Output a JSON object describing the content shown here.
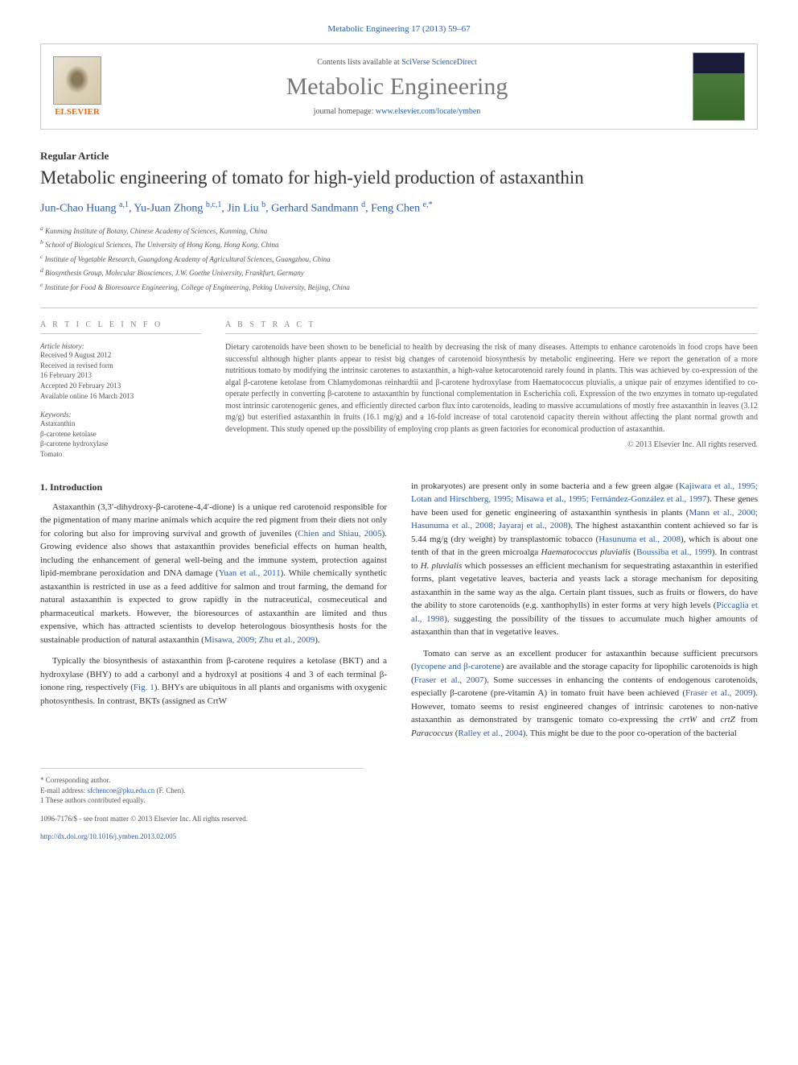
{
  "header": {
    "top_link": "Metabolic Engineering 17 (2013) 59–67",
    "contents_prefix": "Contents lists available at ",
    "contents_link": "SciVerse ScienceDirect",
    "journal_name": "Metabolic Engineering",
    "homepage_prefix": "journal homepage: ",
    "homepage_link": "www.elsevier.com/locate/ymben",
    "publisher": "ELSEVIER"
  },
  "article": {
    "type": "Regular Article",
    "title": "Metabolic engineering of tomato for high-yield production of astaxanthin",
    "authors_html": "Jun-Chao Huang <sup>a,1</sup>, Yu-Juan Zhong <sup>b,c,1</sup>, Jin Liu <sup>b</sup>, Gerhard Sandmann <sup>d</sup>, Feng Chen <sup>e,*</sup>",
    "affiliations": [
      "a Kunming Institute of Botany, Chinese Academy of Sciences, Kunming, China",
      "b School of Biological Sciences, The University of Hong Kong, Hong Kong, China",
      "c Institute of Vegetable Research, Guangdong Academy of Agricultural Sciences, Guangzhou, China",
      "d Biosynthesis Group, Molecular Biosciences, J.W. Goethe University, Frankfurt, Germany",
      "e Institute for Food & Bioresource Engineering, College of Engineering, Peking University, Beijing, China"
    ]
  },
  "info": {
    "heading": "A R T I C L E   I N F O",
    "history_label": "Article history:",
    "history": [
      "Received 9 August 2012",
      "Received in revised form",
      "16 February 2013",
      "Accepted 20 February 2013",
      "Available online 16 March 2013"
    ],
    "keywords_label": "Keywords:",
    "keywords": [
      "Astaxanthin",
      "β-carotene ketolase",
      "β-carotene hydroxylase",
      "Tomato"
    ]
  },
  "abstract": {
    "heading": "A B S T R A C T",
    "text": "Dietary carotenoids have been shown to be beneficial to health by decreasing the risk of many diseases. Attempts to enhance carotenoids in food crops have been successful although higher plants appear to resist big changes of carotenoid biosynthesis by metabolic engineering. Here we report the generation of a more nutritious tomato by modifying the intrinsic carotenes to astaxanthin, a high-value ketocarotenoid rarely found in plants. This was achieved by co-expression of the algal β-carotene ketolase from Chlamydomonas reinhardtii and β-carotene hydroxylase from Haematococcus pluvialis, a unique pair of enzymes identified to co-operate perfectly in converting β-carotene to astaxanthin by functional complementation in Escherichia coli. Expression of the two enzymes in tomato up-regulated most intrinsic carotenogenic genes, and efficiently directed carbon flux into carotenoids, leading to massive accumulations of mostly free astaxanthin in leaves (3.12 mg/g) but esterified astaxanthin in fruits (16.1 mg/g) and a 16-fold increase of total carotenoid capacity therein without affecting the plant normal growth and development. This study opened up the possibility of employing crop plants as green factories for economical production of astaxanthin.",
    "copyright": "© 2013 Elsevier Inc. All rights reserved."
  },
  "body": {
    "section_heading": "1. Introduction",
    "col1_p1": "Astaxanthin (3,3′-dihydroxy-β-carotene-4,4′-dione) is a unique red carotenoid responsible for the pigmentation of many marine animals which acquire the red pigment from their diets not only for coloring but also for improving survival and growth of juveniles (Chien and Shiau, 2005). Growing evidence also shows that astaxanthin provides beneficial effects on human health, including the enhancement of general well-being and the immune system, protection against lipid-membrane peroxidation and DNA damage (Yuan et al., 2011). While chemically synthetic astaxanthin is restricted in use as a feed additive for salmon and trout farming, the demand for natural astaxanthin is expected to grow rapidly in the nutraceutical, cosmeceutical and pharmaceutical markets. However, the bioresources of astaxanthin are limited and thus expensive, which has attracted scientists to develop heterologous biosynthesis hosts for the sustainable production of natural astaxanthin (Misawa, 2009; Zhu et al., 2009).",
    "col1_p2": "Typically the biosynthesis of astaxanthin from β-carotene requires a ketolase (BKT) and a hydroxylase (BHY) to add a carbonyl and a hydroxyl at positions 4 and 3 of each terminal β-ionone ring, respectively (Fig. 1). BHYs are ubiquitous in all plants and organisms with oxygenic photosynthesis. In contrast, BKTs (assigned as CrtW",
    "col2_p1": "in prokaryotes) are present only in some bacteria and a few green algae (Kajiwara et al., 1995; Lotan and Hirschberg, 1995; Misawa et al., 1995; Fernández-González et al., 1997). These genes have been used for genetic engineering of astaxanthin synthesis in plants (Mann et al., 2000; Hasunuma et al., 2008; Jayaraj et al., 2008). The highest astaxanthin content achieved so far is 5.44 mg/g (dry weight) by transplastomic tobacco (Hasunuma et al., 2008), which is about one tenth of that in the green microalga Haematococcus pluvialis (Boussiba et al., 1999). In contrast to H. pluvialis which possesses an efficient mechanism for sequestrating astaxanthin in esterified forms, plant vegetative leaves, bacteria and yeasts lack a storage mechanism for depositing astaxanthin in the same way as the alga. Certain plant tissues, such as fruits or flowers, do have the ability to store carotenoids (e.g. xanthophylls) in ester forms at very high levels (Piccaglia et al., 1998), suggesting the possibility of the tissues to accumulate much higher amounts of astaxanthin than that in vegetative leaves.",
    "col2_p2": "Tomato can serve as an excellent producer for astaxanthin because sufficient precursors (lycopene and β-carotene) are available and the storage capacity for lipophilic carotenoids is high (Fraser et al., 2007). Some successes in enhancing the contents of endogenous carotenoids, especially β-carotene (pre-vitamin A) in tomato fruit have been achieved (Fraser et al., 2009). However, tomato seems to resist engineered changes of intrinsic carotenes to non-native astaxanthin as demonstrated by transgenic tomato co-expressing the crtW and crtZ from Paracoccus (Ralley et al., 2004). This might be due to the poor co-operation of the bacterial"
  },
  "footer": {
    "corresponding": "* Corresponding author.",
    "email_label": "E-mail address: ",
    "email": "sfchencoe@pku.edu.cn",
    "email_suffix": " (F. Chen).",
    "equal": "1 These authors contributed equally.",
    "issn": "1096-7176/$ - see front matter © 2013 Elsevier Inc. All rights reserved.",
    "doi": "http://dx.doi.org/10.1016/j.ymben.2013.02.005"
  },
  "colors": {
    "link": "#2a5caa",
    "text": "#333333",
    "muted": "#555555",
    "border": "#cccccc",
    "publisher": "#ff6600"
  }
}
